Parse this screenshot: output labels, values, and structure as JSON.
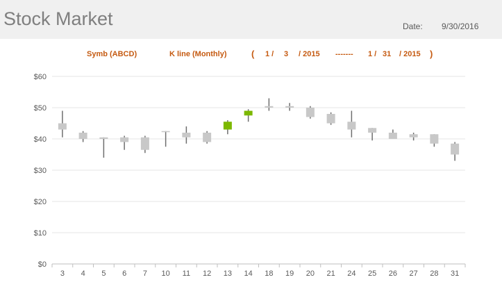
{
  "header": {
    "title": "Stock Market",
    "date_label": "Date:",
    "date_value": "9/30/2016"
  },
  "subheader": {
    "symbol": "Symb (ABCD)",
    "kline": "K line (Monthly)",
    "open_paren": "(",
    "start_month": "1 /",
    "start_day": "3",
    "start_year": "/ 2015",
    "separator": "-------",
    "end_month": "1 /",
    "end_day": "31",
    "end_year": "/ 2015",
    "close_paren": ")"
  },
  "colors": {
    "up": "#7cb800",
    "down": "#c8c8c8",
    "wick": "#6e6e6e",
    "accent": "#c55a11"
  },
  "chart_data": {
    "type": "candlestick",
    "ylim": [
      0,
      60
    ],
    "yticks": [
      "$0",
      "$10",
      "$20",
      "$30",
      "$40",
      "$50",
      "$60"
    ],
    "categories": [
      "3",
      "4",
      "5",
      "6",
      "7",
      "10",
      "11",
      "12",
      "13",
      "14",
      "18",
      "19",
      "20",
      "21",
      "24",
      "25",
      "26",
      "27",
      "28",
      "31"
    ],
    "open": [
      45,
      42,
      40.5,
      40.5,
      40.5,
      42.5,
      42,
      42,
      43,
      47.5,
      50.5,
      50.5,
      50,
      48,
      45.5,
      43.5,
      42,
      41.5,
      41.5,
      38.5
    ],
    "high": [
      49,
      42.5,
      40.5,
      41,
      41,
      42.5,
      44,
      42.5,
      46,
      49.5,
      53,
      51.5,
      50.5,
      48.5,
      49,
      43.5,
      43,
      42,
      41.5,
      39
    ],
    "low": [
      40.5,
      39,
      34,
      36.5,
      35.5,
      37.5,
      38.5,
      38.5,
      41.5,
      45.5,
      49,
      49,
      46.5,
      44.5,
      40.5,
      39.5,
      40,
      39.5,
      37.5,
      33
    ],
    "close": [
      43,
      40,
      40,
      39,
      36.5,
      42.5,
      40.5,
      39,
      45.5,
      49,
      50,
      50,
      47,
      45,
      43,
      42,
      40,
      40.5,
      38.5,
      35
    ]
  }
}
